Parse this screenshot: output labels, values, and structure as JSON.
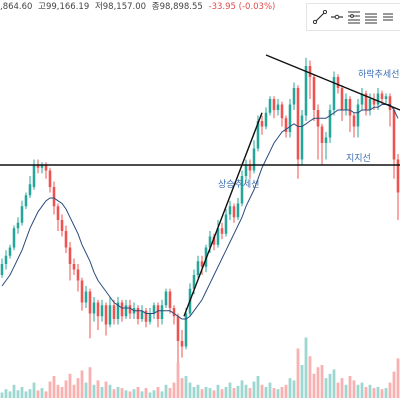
{
  "ohlc": {
    "open": ",864.60",
    "high": "고99,166.19",
    "low": "저98,157.00",
    "close": "종98,898.55",
    "change": "-33.95 (-0.03%)"
  },
  "toolbar": {
    "tools": [
      {
        "name": "trend-line-tool-icon"
      },
      {
        "name": "horizontal-ray-tool-icon"
      },
      {
        "name": "fib-retracement-tool-icon"
      },
      {
        "name": "parallel-channel-tool-icon"
      },
      {
        "name": "more-tools-icon"
      }
    ]
  },
  "colors": {
    "up": "#26a69a",
    "down": "#ef5350",
    "ma": "#2a4b7c",
    "drawing": "#111111",
    "annotation": "#3b6db5"
  },
  "chart_data": {
    "type": "candlestick",
    "candles": [
      [
        0.2,
        0.24,
        0.26,
        0.19
      ],
      [
        0.24,
        0.27,
        0.29,
        0.22
      ],
      [
        0.27,
        0.3,
        0.31,
        0.26
      ],
      [
        0.3,
        0.37,
        0.38,
        0.29
      ],
      [
        0.37,
        0.39,
        0.41,
        0.35
      ],
      [
        0.39,
        0.45,
        0.47,
        0.38
      ],
      [
        0.45,
        0.49,
        0.5,
        0.44
      ],
      [
        0.49,
        0.53,
        0.56,
        0.48
      ],
      [
        0.52,
        0.6,
        0.62,
        0.51
      ],
      [
        0.6,
        0.59,
        0.62,
        0.57
      ],
      [
        0.59,
        0.6,
        0.61,
        0.57
      ],
      [
        0.6,
        0.58,
        0.61,
        0.55
      ],
      [
        0.58,
        0.52,
        0.59,
        0.5
      ],
      [
        0.52,
        0.45,
        0.54,
        0.42
      ],
      [
        0.45,
        0.4,
        0.46,
        0.36
      ],
      [
        0.4,
        0.36,
        0.42,
        0.34
      ],
      [
        0.36,
        0.3,
        0.38,
        0.28
      ],
      [
        0.3,
        0.24,
        0.32,
        0.18
      ],
      [
        0.24,
        0.22,
        0.26,
        0.2
      ],
      [
        0.22,
        0.18,
        0.24,
        0.14
      ],
      [
        0.18,
        0.1,
        0.19,
        0.07
      ],
      [
        0.1,
        0.14,
        0.16,
        0.08
      ],
      [
        0.14,
        0.06,
        0.15,
        -0.03
      ],
      [
        0.06,
        0.1,
        0.12,
        0.03
      ],
      [
        0.1,
        0.05,
        0.11,
        0.0
      ],
      [
        0.05,
        0.09,
        0.11,
        0.03
      ],
      [
        0.09,
        0.02,
        0.1,
        -0.02
      ],
      [
        0.02,
        0.09,
        0.12,
        0.01
      ],
      [
        0.09,
        0.04,
        0.11,
        0.02
      ],
      [
        0.04,
        0.1,
        0.12,
        0.02
      ],
      [
        0.1,
        0.05,
        0.11,
        0.03
      ],
      [
        0.05,
        0.09,
        0.11,
        0.04
      ],
      [
        0.09,
        0.06,
        0.11,
        0.04
      ],
      [
        0.06,
        0.08,
        0.1,
        0.04
      ],
      [
        0.08,
        0.04,
        0.09,
        0.02
      ],
      [
        0.04,
        0.07,
        0.09,
        0.03
      ],
      [
        0.07,
        0.03,
        0.08,
        0.01
      ],
      [
        0.03,
        0.06,
        0.08,
        0.02
      ],
      [
        0.06,
        0.09,
        0.1,
        0.04
      ],
      [
        0.09,
        0.04,
        0.1,
        0.01
      ],
      [
        0.04,
        0.09,
        0.11,
        0.02
      ],
      [
        0.09,
        0.14,
        0.15,
        0.08
      ],
      [
        0.14,
        0.08,
        0.15,
        0.06
      ],
      [
        0.08,
        0.05,
        0.09,
        0.02
      ],
      [
        0.05,
        -0.04,
        0.06,
        -0.12
      ],
      [
        -0.04,
        -0.06,
        0.0,
        -0.1
      ],
      [
        -0.06,
        0.06,
        0.08,
        -0.07
      ],
      [
        0.06,
        0.15,
        0.17,
        0.05
      ],
      [
        0.15,
        0.2,
        0.22,
        0.13
      ],
      [
        0.2,
        0.25,
        0.27,
        0.19
      ],
      [
        0.25,
        0.23,
        0.27,
        0.2
      ],
      [
        0.23,
        0.3,
        0.31,
        0.21
      ],
      [
        0.3,
        0.34,
        0.36,
        0.28
      ],
      [
        0.34,
        0.31,
        0.35,
        0.29
      ],
      [
        0.31,
        0.37,
        0.4,
        0.3
      ],
      [
        0.37,
        0.35,
        0.39,
        0.33
      ],
      [
        0.35,
        0.42,
        0.44,
        0.34
      ],
      [
        0.42,
        0.45,
        0.47,
        0.4
      ],
      [
        0.45,
        0.41,
        0.46,
        0.39
      ],
      [
        0.41,
        0.46,
        0.48,
        0.4
      ],
      [
        0.46,
        0.56,
        0.58,
        0.45
      ],
      [
        0.56,
        0.6,
        0.62,
        0.54
      ],
      [
        0.6,
        0.58,
        0.62,
        0.55
      ],
      [
        0.58,
        0.66,
        0.69,
        0.57
      ],
      [
        0.66,
        0.76,
        0.78,
        0.65
      ],
      [
        0.76,
        0.74,
        0.78,
        0.71
      ],
      [
        0.74,
        0.79,
        0.81,
        0.73
      ],
      [
        0.79,
        0.84,
        0.85,
        0.78
      ],
      [
        0.84,
        0.8,
        0.85,
        0.77
      ],
      [
        0.8,
        0.82,
        0.84,
        0.78
      ],
      [
        0.82,
        0.77,
        0.83,
        0.74
      ],
      [
        0.77,
        0.72,
        0.78,
        0.7
      ],
      [
        0.72,
        0.82,
        0.84,
        0.7
      ],
      [
        0.82,
        0.88,
        0.9,
        0.8
      ],
      [
        0.88,
        0.62,
        0.89,
        0.55
      ],
      [
        0.62,
        0.78,
        0.8,
        0.6
      ],
      [
        0.78,
        0.96,
        0.99,
        0.76
      ],
      [
        0.96,
        0.92,
        0.98,
        0.84
      ],
      [
        0.92,
        0.8,
        0.93,
        0.76
      ],
      [
        0.8,
        0.74,
        0.82,
        0.62
      ],
      [
        0.74,
        0.68,
        0.75,
        0.6
      ],
      [
        0.68,
        0.7,
        0.72,
        0.62
      ],
      [
        0.7,
        0.8,
        0.82,
        0.68
      ],
      [
        0.8,
        0.92,
        0.94,
        0.78
      ],
      [
        0.92,
        0.88,
        0.93,
        0.86
      ],
      [
        0.88,
        0.8,
        0.89,
        0.76
      ],
      [
        0.8,
        0.84,
        0.86,
        0.78
      ],
      [
        0.84,
        0.78,
        0.85,
        0.72
      ],
      [
        0.78,
        0.74,
        0.79,
        0.7
      ],
      [
        0.74,
        0.82,
        0.84,
        0.7
      ],
      [
        0.82,
        0.86,
        0.88,
        0.8
      ],
      [
        0.86,
        0.8,
        0.87,
        0.78
      ],
      [
        0.8,
        0.84,
        0.86,
        0.78
      ],
      [
        0.84,
        0.82,
        0.86,
        0.8
      ],
      [
        0.82,
        0.86,
        0.88,
        0.8
      ],
      [
        0.86,
        0.84,
        0.87,
        0.82
      ],
      [
        0.84,
        0.85,
        0.86,
        0.82
      ],
      [
        0.85,
        0.8,
        0.86,
        0.74
      ],
      [
        0.8,
        0.62,
        0.81,
        0.55
      ],
      [
        0.62,
        0.5,
        0.64,
        0.4
      ]
    ],
    "ma": [
      0.16,
      0.18,
      0.2,
      0.23,
      0.26,
      0.29,
      0.33,
      0.37,
      0.4,
      0.43,
      0.45,
      0.47,
      0.48,
      0.48,
      0.47,
      0.46,
      0.44,
      0.41,
      0.38,
      0.35,
      0.31,
      0.28,
      0.25,
      0.21,
      0.18,
      0.16,
      0.14,
      0.12,
      0.1,
      0.09,
      0.08,
      0.08,
      0.08,
      0.07,
      0.07,
      0.07,
      0.06,
      0.06,
      0.06,
      0.07,
      0.07,
      0.07,
      0.07,
      0.06,
      0.05,
      0.04,
      0.04,
      0.05,
      0.07,
      0.09,
      0.11,
      0.14,
      0.17,
      0.2,
      0.23,
      0.26,
      0.29,
      0.32,
      0.35,
      0.38,
      0.41,
      0.45,
      0.48,
      0.51,
      0.55,
      0.59,
      0.62,
      0.65,
      0.68,
      0.7,
      0.72,
      0.73,
      0.74,
      0.75,
      0.74,
      0.74,
      0.75,
      0.76,
      0.77,
      0.77,
      0.77,
      0.77,
      0.78,
      0.79,
      0.8,
      0.8,
      0.8,
      0.8,
      0.79,
      0.79,
      0.8,
      0.8,
      0.8,
      0.81,
      0.81,
      0.82,
      0.82,
      0.82,
      0.8,
      0.77
    ],
    "volume": [
      0.05,
      0.08,
      0.06,
      0.12,
      0.07,
      0.1,
      0.06,
      0.08,
      0.14,
      0.07,
      0.09,
      0.06,
      0.15,
      0.2,
      0.12,
      0.1,
      0.16,
      0.22,
      0.12,
      0.18,
      0.25,
      0.14,
      0.28,
      0.12,
      0.16,
      0.1,
      0.15,
      0.12,
      0.08,
      0.1,
      0.09,
      0.07,
      0.06,
      0.08,
      0.1,
      0.06,
      0.09,
      0.05,
      0.07,
      0.1,
      0.06,
      0.12,
      0.09,
      0.14,
      0.32,
      0.18,
      0.2,
      0.14,
      0.1,
      0.12,
      0.08,
      0.1,
      0.09,
      0.07,
      0.12,
      0.08,
      0.1,
      0.14,
      0.09,
      0.11,
      0.16,
      0.12,
      0.09,
      0.15,
      0.2,
      0.12,
      0.1,
      0.14,
      0.09,
      0.08,
      0.1,
      0.12,
      0.18,
      0.16,
      0.45,
      0.3,
      0.55,
      0.38,
      0.22,
      0.28,
      0.3,
      0.18,
      0.22,
      0.26,
      0.14,
      0.18,
      0.12,
      0.2,
      0.16,
      0.12,
      0.14,
      0.1,
      0.12,
      0.09,
      0.1,
      0.08,
      0.09,
      0.14,
      0.24,
      0.36
    ],
    "support_level": 0.6,
    "annotations": {
      "support": "지지선",
      "uptrend": "상승추세선",
      "downtrend": "하락추세선"
    }
  }
}
